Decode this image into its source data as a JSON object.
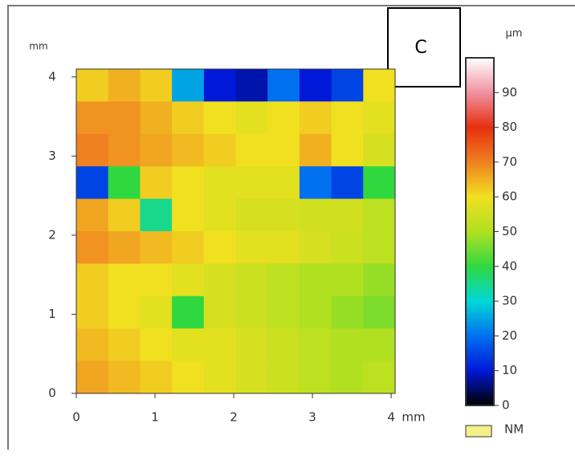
{
  "chart_data": {
    "type": "heatmap",
    "panel_label": "C",
    "y_unit": "mm",
    "x_unit": "mm",
    "colorbar_label": "μm",
    "legend_label": "NM",
    "legend_color": "#f4f08a",
    "xlim": [
      0,
      4.05
    ],
    "ylim": [
      0,
      4.1
    ],
    "xticks": [
      0,
      1,
      2,
      3,
      4
    ],
    "yticks": [
      0,
      1,
      2,
      3,
      4
    ],
    "clim": [
      0,
      100
    ],
    "cticks": [
      0,
      10,
      20,
      30,
      40,
      50,
      60,
      70,
      80,
      90
    ],
    "colormap": [
      "#000000",
      "#0018d8",
      "#0070f0",
      "#00d8d8",
      "#30d840",
      "#b0e020",
      "#f0e020",
      "#f08020",
      "#e83010",
      "#f090a0",
      "#ffffff"
    ],
    "z": [
      [
        62,
        65,
        62,
        25,
        10,
        8,
        20,
        10,
        15,
        60
      ],
      [
        68,
        68,
        65,
        62,
        60,
        58,
        60,
        62,
        60,
        58
      ],
      [
        70,
        68,
        66,
        64,
        62,
        60,
        60,
        65,
        60,
        56
      ],
      [
        15,
        40,
        62,
        60,
        58,
        58,
        58,
        20,
        15,
        40
      ],
      [
        66,
        62,
        35,
        60,
        58,
        56,
        56,
        55,
        55,
        52
      ],
      [
        68,
        66,
        64,
        62,
        60,
        58,
        58,
        56,
        54,
        52
      ],
      [
        62,
        60,
        60,
        58,
        56,
        54,
        52,
        50,
        50,
        48
      ],
      [
        62,
        60,
        58,
        40,
        56,
        54,
        52,
        50,
        48,
        46
      ],
      [
        64,
        62,
        60,
        58,
        58,
        56,
        54,
        52,
        50,
        50
      ],
      [
        66,
        64,
        62,
        60,
        58,
        56,
        54,
        52,
        50,
        52
      ]
    ]
  }
}
